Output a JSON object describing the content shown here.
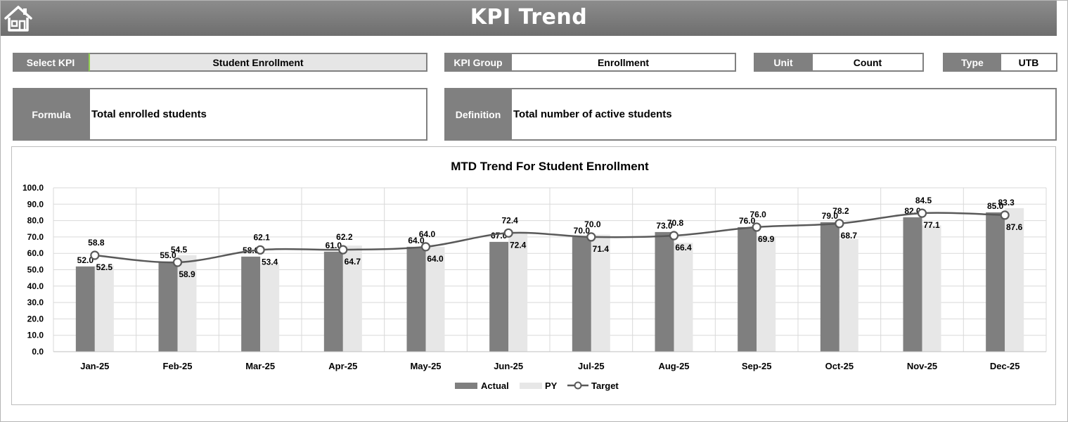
{
  "header": {
    "title": "KPI Trend",
    "home_icon": "home-icon"
  },
  "fields": {
    "select_kpi_label": "Select KPI",
    "select_kpi_value": "Student Enrollment",
    "kpi_group_label": "KPI Group",
    "kpi_group_value": "Enrollment",
    "unit_label": "Unit",
    "unit_value": "Count",
    "type_label": "Type",
    "type_value": "UTB",
    "formula_label": "Formula",
    "formula_value": "Total enrolled students",
    "definition_label": "Definition",
    "definition_value": "Total number of active students"
  },
  "colors": {
    "actual": "#7f7f7f",
    "py": "#e7e7e7",
    "target": "#595959",
    "label_bg": "#808080"
  },
  "chart_data": {
    "type": "bar",
    "title": "MTD Trend For Student Enrollment",
    "categories": [
      "Jan-25",
      "Feb-25",
      "Mar-25",
      "Apr-25",
      "May-25",
      "Jun-25",
      "Jul-25",
      "Aug-25",
      "Sep-25",
      "Oct-25",
      "Nov-25",
      "Dec-25"
    ],
    "series": [
      {
        "name": "Actual",
        "kind": "bar",
        "values": [
          52.0,
          55.0,
          58.0,
          61.0,
          64.0,
          67.0,
          70.0,
          73.0,
          76.0,
          79.0,
          82.0,
          85.0
        ]
      },
      {
        "name": "PY",
        "kind": "bar",
        "values": [
          52.5,
          58.9,
          53.4,
          64.7,
          64.0,
          72.4,
          71.4,
          66.4,
          69.9,
          68.7,
          77.1,
          87.6
        ]
      },
      {
        "name": "Target",
        "kind": "line",
        "values": [
          58.8,
          54.5,
          62.1,
          62.2,
          64.0,
          72.4,
          70.0,
          70.8,
          76.0,
          78.2,
          84.5,
          83.3
        ]
      }
    ],
    "ylim": [
      0,
      100
    ],
    "yticks": [
      "0.0",
      "10.0",
      "20.0",
      "30.0",
      "40.0",
      "50.0",
      "60.0",
      "70.0",
      "80.0",
      "90.0",
      "100.0"
    ],
    "grid": true,
    "legend_position": "bottom"
  }
}
